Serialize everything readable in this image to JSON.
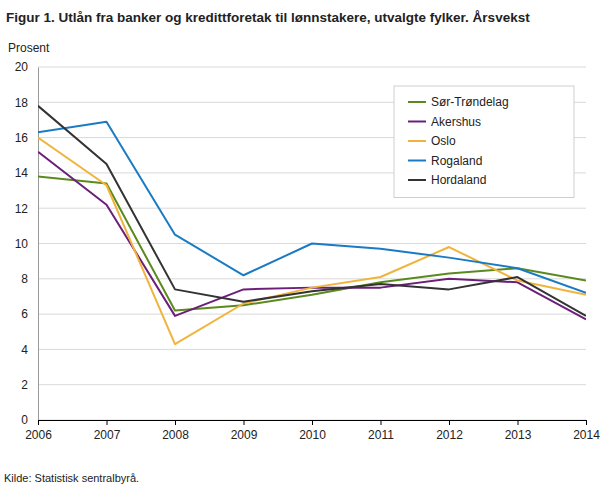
{
  "chart_data": {
    "type": "line",
    "title": "Figur 1. Utlån fra banker og kredittforetak til lønnstakere, utvalgte fylker. Årsvekst",
    "y_label": "Prosent",
    "source": "Kilde: Statistisk sentralbyrå.",
    "x": [
      2006,
      2007,
      2008,
      2009,
      2010,
      2011,
      2012,
      2013,
      2014
    ],
    "series": [
      {
        "name": "Sør-Trøndelag",
        "color": "#5a8a1e",
        "values": [
          13.8,
          13.4,
          6.2,
          6.5,
          7.1,
          7.8,
          8.3,
          8.6,
          7.9
        ]
      },
      {
        "name": "Akershus",
        "color": "#6b1f7a",
        "values": [
          15.2,
          12.2,
          5.9,
          7.4,
          7.5,
          7.5,
          8.0,
          7.8,
          5.7
        ]
      },
      {
        "name": "Oslo",
        "color": "#f0b43c",
        "values": [
          16.0,
          13.3,
          4.3,
          6.6,
          7.5,
          8.1,
          9.8,
          7.9,
          7.1
        ]
      },
      {
        "name": "Rogaland",
        "color": "#1a7bc4",
        "values": [
          16.3,
          16.9,
          10.5,
          8.2,
          10.0,
          9.7,
          9.2,
          8.6,
          7.2
        ]
      },
      {
        "name": "Hordaland",
        "color": "#333333",
        "values": [
          17.8,
          14.5,
          7.4,
          6.7,
          7.3,
          7.7,
          7.4,
          8.1,
          5.9
        ]
      }
    ],
    "xlim": [
      2006,
      2014
    ],
    "xticks": [
      2006,
      2007,
      2008,
      2009,
      2010,
      2011,
      2012,
      2013,
      2014
    ],
    "ylim": [
      0,
      20
    ],
    "yticks": [
      0,
      2,
      4,
      6,
      8,
      10,
      12,
      14,
      16,
      18,
      20
    ],
    "grid": true,
    "legend": "top-right"
  }
}
